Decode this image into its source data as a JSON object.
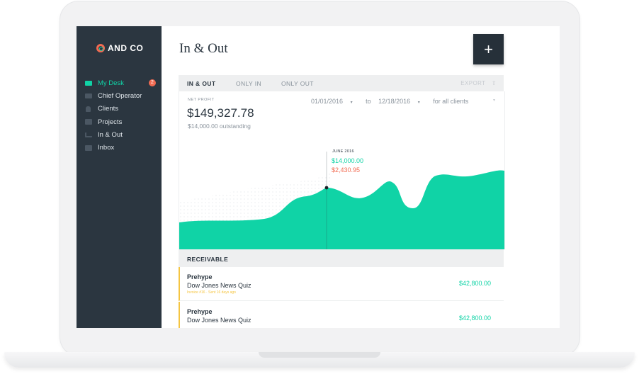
{
  "app": {
    "logo_text": "AND CO"
  },
  "sidebar": {
    "items": [
      {
        "label": "My Desk",
        "badge": "2",
        "active": true,
        "icon": "desk-icon"
      },
      {
        "label": "Chief Operator",
        "icon": "chat-icon"
      },
      {
        "label": "Clients",
        "icon": "person-icon"
      },
      {
        "label": "Projects",
        "icon": "grid-icon"
      },
      {
        "label": "In & Out",
        "icon": "bar-chart-icon"
      },
      {
        "label": "Inbox",
        "icon": "inbox-icon"
      }
    ]
  },
  "header": {
    "title": "In & Out",
    "add_label": "+"
  },
  "tabs": [
    {
      "label": "IN & OUT",
      "active": true
    },
    {
      "label": "ONLY IN"
    },
    {
      "label": "ONLY OUT"
    }
  ],
  "export_label": "EXPORT",
  "summary": {
    "net_profit_label": "NET PROFIT",
    "net_profit": "$149,327.78",
    "outstanding": "$14,000.00 outstanding"
  },
  "filters": {
    "start_date": "01/01/2016",
    "to_label": "to",
    "end_date": "12/18/2016",
    "client_filter": "for all clients"
  },
  "tooltip": {
    "period": "JUNE 2016",
    "in_value": "$14,000.00",
    "out_value": "$2,430.95"
  },
  "receivable": {
    "header": "RECEIVABLE",
    "rows": [
      {
        "client": "Prehype",
        "project": "Dow Jones News Quiz",
        "meta": "Invoice #16 · Sent 16 days ago",
        "amount": "$42,800.00"
      },
      {
        "client": "Prehype",
        "project": "Dow Jones News Quiz",
        "meta": "",
        "amount": "$42,800.00"
      }
    ]
  },
  "colors": {
    "accent": "#10d3a6",
    "danger": "#f26b52",
    "sidebar": "#2b3640",
    "warning": "#f5c542"
  }
}
